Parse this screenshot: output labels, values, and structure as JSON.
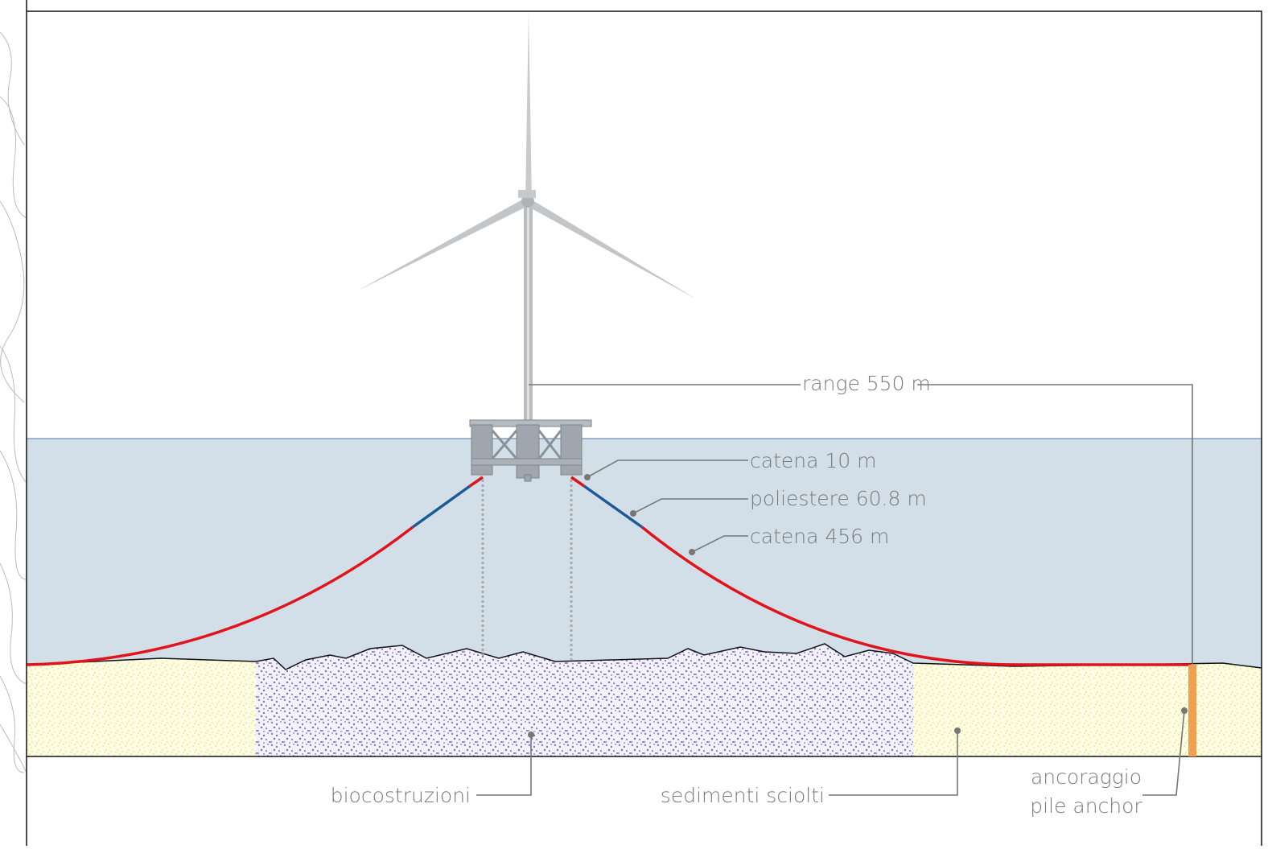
{
  "labels": {
    "range": "range 550 m",
    "chain_top": "catena 10 m",
    "polyester": "poliestere 60.8 m",
    "chain_bottom": "catena 456 m",
    "bio": "biocostruzioni",
    "sediments": "sedimenti sciolti",
    "anchor": [
      "ancoraggio",
      "pile anchor"
    ]
  }
}
